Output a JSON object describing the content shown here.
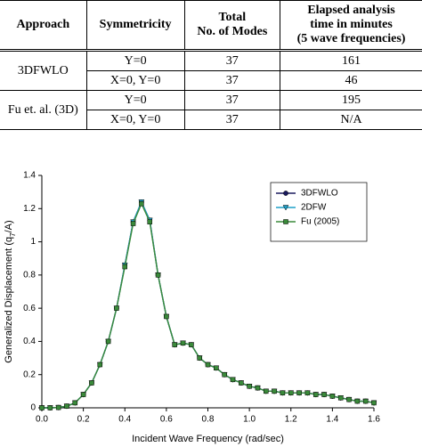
{
  "table": {
    "header": [
      [
        "Approach"
      ],
      [
        "Symmetricity"
      ],
      [
        "Total",
        "No. of Modes"
      ],
      [
        "Elapsed analysis",
        "time in minutes",
        "(5 wave frequencies)"
      ]
    ],
    "groups": [
      {
        "approach": "3DFWLO",
        "rows": [
          [
            "Y=0",
            "37",
            "161"
          ],
          [
            "X=0, Y=0",
            "37",
            "46"
          ]
        ]
      },
      {
        "approach": "Fu et. al. (3D)",
        "rows": [
          [
            "Y=0",
            "37",
            "195"
          ],
          [
            "X=0, Y=0",
            "37",
            "N/A"
          ]
        ]
      }
    ]
  },
  "chart_data": {
    "type": "line",
    "x_label": "Incident Wave Frequency (rad/sec)",
    "y_label": [
      "Generalized Displacement (q",
      "7",
      "/A)"
    ],
    "x": [
      0,
      0.04,
      0.08,
      0.12,
      0.16,
      0.2,
      0.24,
      0.28,
      0.32,
      0.36,
      0.4,
      0.44,
      0.48,
      0.52,
      0.56,
      0.6,
      0.64,
      0.68,
      0.72,
      0.76,
      0.8,
      0.84,
      0.88,
      0.92,
      0.96,
      1.0,
      1.04,
      1.08,
      1.12,
      1.16,
      1.2,
      1.24,
      1.28,
      1.32,
      1.36,
      1.4,
      1.44,
      1.48,
      1.52,
      1.56,
      1.6
    ],
    "series": [
      {
        "name": "3DFWLO",
        "color": "#1a1a5e",
        "marker": "circle",
        "values": [
          0,
          0,
          0.002,
          0.01,
          0.03,
          0.08,
          0.15,
          0.26,
          0.4,
          0.6,
          0.86,
          1.12,
          1.24,
          1.13,
          0.8,
          0.55,
          0.38,
          0.39,
          0.38,
          0.3,
          0.26,
          0.24,
          0.2,
          0.17,
          0.15,
          0.13,
          0.12,
          0.1,
          0.1,
          0.09,
          0.09,
          0.09,
          0.09,
          0.08,
          0.08,
          0.07,
          0.06,
          0.05,
          0.04,
          0.04,
          0.03
        ]
      },
      {
        "name": "2DFW",
        "color": "#1fa0c8",
        "marker": "triangle",
        "values": [
          0,
          0,
          0.002,
          0.01,
          0.03,
          0.08,
          0.15,
          0.26,
          0.4,
          0.6,
          0.86,
          1.12,
          1.24,
          1.13,
          0.8,
          0.55,
          0.38,
          0.39,
          0.38,
          0.3,
          0.26,
          0.24,
          0.2,
          0.17,
          0.15,
          0.13,
          0.12,
          0.1,
          0.1,
          0.09,
          0.09,
          0.09,
          0.09,
          0.08,
          0.08,
          0.07,
          0.06,
          0.05,
          0.04,
          0.04,
          0.03
        ]
      },
      {
        "name": "Fu (2005)",
        "color": "#3a8a3a",
        "marker": "square",
        "values": [
          0,
          0,
          0.002,
          0.01,
          0.03,
          0.08,
          0.15,
          0.26,
          0.4,
          0.6,
          0.85,
          1.11,
          1.23,
          1.12,
          0.8,
          0.55,
          0.38,
          0.39,
          0.38,
          0.3,
          0.26,
          0.24,
          0.2,
          0.17,
          0.15,
          0.13,
          0.12,
          0.1,
          0.1,
          0.09,
          0.09,
          0.09,
          0.09,
          0.08,
          0.08,
          0.07,
          0.06,
          0.05,
          0.04,
          0.04,
          0.03
        ]
      }
    ],
    "xlim": [
      0,
      1.6
    ],
    "xticks": [
      {
        "value": 0,
        "label": "0.0"
      },
      0.2,
      0.4,
      0.6,
      0.8,
      {
        "value": 1,
        "label": "1.0"
      },
      1.2,
      1.4,
      1.6
    ],
    "ylim": [
      0,
      1.4
    ],
    "yticks": [
      0,
      0.2,
      0.4,
      0.6,
      0.8,
      1,
      1.2,
      1.4
    ],
    "legend": "upper right"
  }
}
